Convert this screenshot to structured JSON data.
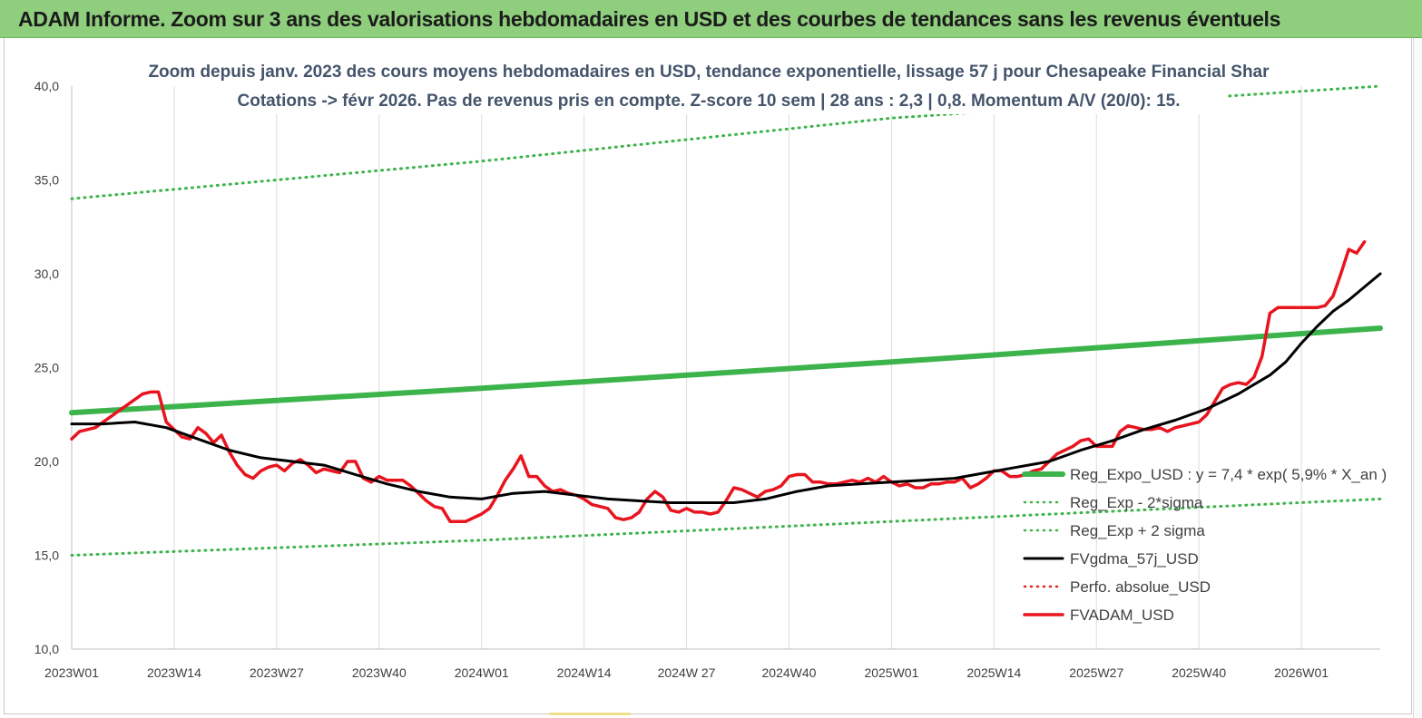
{
  "header": {
    "title": "ADAM Informe. Zoom sur 3 ans des valorisations hebdomadaires en USD et des courbes de tendances sans les revenus éventuels"
  },
  "chart_data": {
    "type": "line",
    "title_line1": "Zoom depuis janv. 2023 des cours moyens hebdomadaires en USD, tendance exponentielle, lissage 57 j pour Chesapeake Financial Shar",
    "title_line2": "Cotations -> févr 2026.  Pas de revenus pris en compte. Z-score 10 sem  | 28 ans : 2,3 | 0,8. Momentum A/V (20/0): 15.",
    "xlabel": "",
    "ylabel": "",
    "ylim": [
      10,
      40
    ],
    "yticks": [
      "10,0",
      "15,0",
      "20,0",
      "25,0",
      "30,0",
      "35,0",
      "40,0"
    ],
    "xticks": [
      "2023W01",
      "2023W14",
      "2023W27",
      "2023W40",
      "2024W01",
      "2024W14",
      "2024W 27",
      "2024W40",
      "2025W01",
      "2025W14",
      "2025W27",
      "2025W40",
      "2026W01"
    ],
    "xtick_index": [
      0,
      13,
      26,
      39,
      52,
      65,
      78,
      91,
      104,
      117,
      130,
      143,
      156
    ],
    "x_count": 167,
    "grid": "vertical",
    "legend_position": "right",
    "series": [
      {
        "name": "Reg_Expo_USD : y = 7,4 * exp( 5,9% *  X_an )",
        "color": "#3cb44b",
        "style": "solid-thick",
        "values": [
          [
            0,
            22.6
          ],
          [
            52,
            23.9
          ],
          [
            104,
            25.3
          ],
          [
            166,
            27.1
          ]
        ]
      },
      {
        "name": "Reg_Exp - 2*sigma",
        "color": "#3cb44b",
        "style": "dotted",
        "values": [
          [
            0,
            15.0
          ],
          [
            52,
            15.8
          ],
          [
            104,
            16.8
          ],
          [
            166,
            18.0
          ]
        ]
      },
      {
        "name": "Reg_Exp + 2 sigma",
        "color": "#3cb44b",
        "style": "dotted",
        "values": [
          [
            0,
            34.0
          ],
          [
            52,
            36.0
          ],
          [
            104,
            38.3
          ],
          [
            166,
            40.0
          ]
        ]
      },
      {
        "name": "FVgdma_57j_USD",
        "color": "#000000",
        "style": "solid",
        "values": [
          [
            0,
            22.0
          ],
          [
            4,
            22.0
          ],
          [
            8,
            22.1
          ],
          [
            12,
            21.8
          ],
          [
            16,
            21.2
          ],
          [
            20,
            20.6
          ],
          [
            24,
            20.2
          ],
          [
            28,
            20.0
          ],
          [
            32,
            19.8
          ],
          [
            36,
            19.3
          ],
          [
            40,
            18.8
          ],
          [
            44,
            18.4
          ],
          [
            48,
            18.1
          ],
          [
            52,
            18.0
          ],
          [
            56,
            18.3
          ],
          [
            60,
            18.4
          ],
          [
            64,
            18.2
          ],
          [
            68,
            18.0
          ],
          [
            72,
            17.9
          ],
          [
            76,
            17.8
          ],
          [
            80,
            17.8
          ],
          [
            84,
            17.8
          ],
          [
            88,
            18.0
          ],
          [
            92,
            18.4
          ],
          [
            96,
            18.7
          ],
          [
            100,
            18.8
          ],
          [
            104,
            18.9
          ],
          [
            108,
            19.0
          ],
          [
            112,
            19.1
          ],
          [
            116,
            19.4
          ],
          [
            120,
            19.7
          ],
          [
            124,
            20.0
          ],
          [
            128,
            20.6
          ],
          [
            132,
            21.1
          ],
          [
            136,
            21.7
          ],
          [
            140,
            22.2
          ],
          [
            144,
            22.8
          ],
          [
            148,
            23.6
          ],
          [
            150,
            24.1
          ],
          [
            152,
            24.6
          ],
          [
            154,
            25.3
          ],
          [
            156,
            26.3
          ],
          [
            158,
            27.2
          ],
          [
            160,
            28.0
          ],
          [
            162,
            28.6
          ],
          [
            164,
            29.3
          ],
          [
            166,
            30.0
          ]
        ]
      },
      {
        "name": "Perfo. absolue_USD",
        "color": "#e02020",
        "style": "dotted",
        "values": []
      },
      {
        "name": "FVADAM_USD",
        "color": "#e8141e",
        "style": "solid-thick",
        "values": [
          [
            0,
            21.2
          ],
          [
            1,
            21.6
          ],
          [
            3,
            21.8
          ],
          [
            5,
            22.4
          ],
          [
            7,
            23.0
          ],
          [
            9,
            23.6
          ],
          [
            10,
            23.7
          ],
          [
            11,
            23.7
          ],
          [
            12,
            22.1
          ],
          [
            14,
            21.3
          ],
          [
            15,
            21.2
          ],
          [
            16,
            21.8
          ],
          [
            17,
            21.5
          ],
          [
            18,
            21.0
          ],
          [
            19,
            21.4
          ],
          [
            20,
            20.5
          ],
          [
            21,
            19.8
          ],
          [
            22,
            19.3
          ],
          [
            23,
            19.1
          ],
          [
            24,
            19.5
          ],
          [
            25,
            19.7
          ],
          [
            26,
            19.8
          ],
          [
            27,
            19.5
          ],
          [
            28,
            19.9
          ],
          [
            29,
            20.1
          ],
          [
            30,
            19.8
          ],
          [
            31,
            19.4
          ],
          [
            32,
            19.6
          ],
          [
            33,
            19.5
          ],
          [
            34,
            19.4
          ],
          [
            35,
            20.0
          ],
          [
            36,
            20.0
          ],
          [
            37,
            19.1
          ],
          [
            38,
            18.9
          ],
          [
            39,
            19.2
          ],
          [
            40,
            19.0
          ],
          [
            41,
            19.0
          ],
          [
            42,
            19.0
          ],
          [
            43,
            18.7
          ],
          [
            44,
            18.3
          ],
          [
            45,
            17.9
          ],
          [
            46,
            17.6
          ],
          [
            47,
            17.5
          ],
          [
            48,
            16.8
          ],
          [
            49,
            16.8
          ],
          [
            50,
            16.8
          ],
          [
            51,
            17.0
          ],
          [
            52,
            17.2
          ],
          [
            53,
            17.5
          ],
          [
            54,
            18.2
          ],
          [
            55,
            19.0
          ],
          [
            56,
            19.6
          ],
          [
            57,
            20.3
          ],
          [
            58,
            19.2
          ],
          [
            59,
            19.2
          ],
          [
            60,
            18.7
          ],
          [
            61,
            18.4
          ],
          [
            62,
            18.5
          ],
          [
            63,
            18.3
          ],
          [
            64,
            18.2
          ],
          [
            65,
            18.0
          ],
          [
            66,
            17.7
          ],
          [
            67,
            17.6
          ],
          [
            68,
            17.5
          ],
          [
            69,
            17.0
          ],
          [
            70,
            16.9
          ],
          [
            71,
            17.0
          ],
          [
            72,
            17.3
          ],
          [
            73,
            18.0
          ],
          [
            74,
            18.4
          ],
          [
            75,
            18.1
          ],
          [
            76,
            17.4
          ],
          [
            77,
            17.3
          ],
          [
            78,
            17.5
          ],
          [
            79,
            17.3
          ],
          [
            80,
            17.3
          ],
          [
            81,
            17.2
          ],
          [
            82,
            17.3
          ],
          [
            83,
            17.9
          ],
          [
            84,
            18.6
          ],
          [
            85,
            18.5
          ],
          [
            86,
            18.3
          ],
          [
            87,
            18.1
          ],
          [
            88,
            18.4
          ],
          [
            89,
            18.5
          ],
          [
            90,
            18.7
          ],
          [
            91,
            19.2
          ],
          [
            92,
            19.3
          ],
          [
            93,
            19.3
          ],
          [
            94,
            18.9
          ],
          [
            95,
            18.9
          ],
          [
            96,
            18.8
          ],
          [
            97,
            18.8
          ],
          [
            98,
            18.9
          ],
          [
            99,
            19.0
          ],
          [
            100,
            18.9
          ],
          [
            101,
            19.1
          ],
          [
            102,
            18.9
          ],
          [
            103,
            19.2
          ],
          [
            104,
            18.9
          ],
          [
            105,
            18.7
          ],
          [
            106,
            18.8
          ],
          [
            107,
            18.6
          ],
          [
            108,
            18.6
          ],
          [
            109,
            18.8
          ],
          [
            110,
            18.8
          ],
          [
            111,
            18.9
          ],
          [
            112,
            18.9
          ],
          [
            113,
            19.1
          ],
          [
            114,
            18.6
          ],
          [
            115,
            18.8
          ],
          [
            116,
            19.1
          ],
          [
            117,
            19.5
          ],
          [
            118,
            19.5
          ],
          [
            119,
            19.2
          ],
          [
            120,
            19.2
          ],
          [
            121,
            19.3
          ],
          [
            122,
            19.5
          ],
          [
            123,
            19.6
          ],
          [
            124,
            20.0
          ],
          [
            125,
            20.4
          ],
          [
            126,
            20.6
          ],
          [
            127,
            20.8
          ],
          [
            128,
            21.1
          ],
          [
            129,
            21.2
          ],
          [
            130,
            20.8
          ],
          [
            131,
            20.8
          ],
          [
            132,
            20.8
          ],
          [
            133,
            21.6
          ],
          [
            134,
            21.9
          ],
          [
            135,
            21.8
          ],
          [
            136,
            21.7
          ],
          [
            137,
            21.7
          ],
          [
            138,
            21.8
          ],
          [
            139,
            21.6
          ],
          [
            140,
            21.8
          ],
          [
            141,
            21.9
          ],
          [
            142,
            22.0
          ],
          [
            143,
            22.1
          ],
          [
            144,
            22.5
          ],
          [
            145,
            23.2
          ],
          [
            146,
            23.9
          ],
          [
            147,
            24.1
          ],
          [
            148,
            24.2
          ],
          [
            149,
            24.1
          ],
          [
            150,
            24.5
          ],
          [
            151,
            25.6
          ],
          [
            152,
            27.9
          ],
          [
            153,
            28.2
          ],
          [
            154,
            28.2
          ],
          [
            155,
            28.2
          ],
          [
            156,
            28.2
          ],
          [
            157,
            28.2
          ],
          [
            158,
            28.2
          ],
          [
            159,
            28.3
          ],
          [
            160,
            28.8
          ],
          [
            161,
            30.0
          ],
          [
            162,
            31.3
          ],
          [
            163,
            31.1
          ],
          [
            164,
            31.7
          ]
        ]
      }
    ]
  }
}
